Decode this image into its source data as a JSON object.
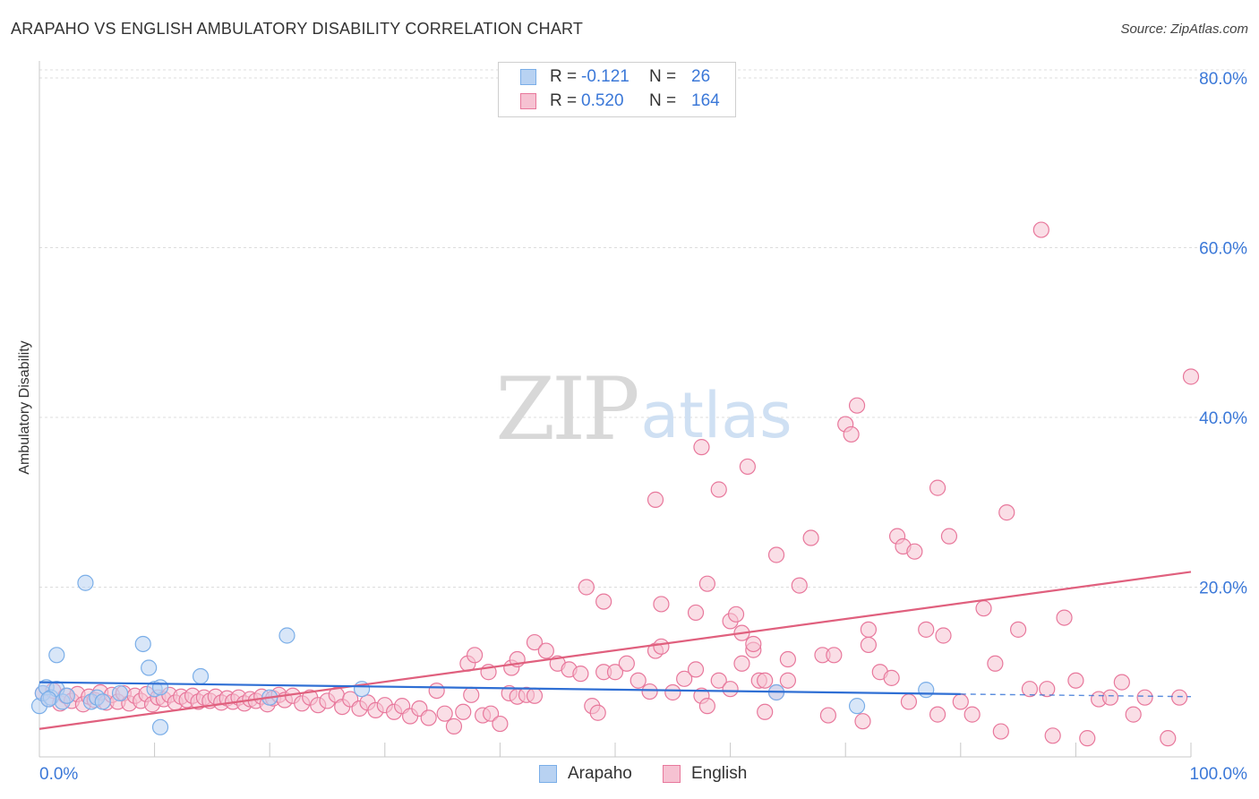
{
  "chart_data": {
    "type": "scatter",
    "title": "ARAPAHO VS ENGLISH AMBULATORY DISABILITY CORRELATION CHART",
    "source": "Source: ZipAtlas.com",
    "ylabel": "Ambulatory Disability",
    "xlabel": "",
    "xlim": [
      0,
      100
    ],
    "ylim": [
      0,
      82
    ],
    "x_tick_labels": [
      "0.0%",
      "100.0%"
    ],
    "y_ticks": [
      20,
      40,
      60,
      80
    ],
    "y_tick_labels": [
      "20.0%",
      "40.0%",
      "60.0%",
      "80.0%"
    ],
    "grid": true,
    "watermark": {
      "zip": "ZIP",
      "atlas": "atlas"
    },
    "legend_stats": {
      "r_label": "R = ",
      "n_label": "N = ",
      "rows": [
        {
          "series": "Arapaho",
          "r": "-0.121",
          "n": "26"
        },
        {
          "series": "English",
          "r": "0.520",
          "n": "164"
        }
      ]
    },
    "series": [
      {
        "name": "Arapaho",
        "color": "#7aaee8",
        "fill": "#b8d2f2",
        "trend": {
          "x0": 0,
          "y0": 8.8,
          "x1": 80,
          "y1": 7.4,
          "dashed_to": 100,
          "dashed_y": 7.1,
          "color": "#2f6fd4"
        },
        "points": [
          [
            0,
            6.0
          ],
          [
            0.3,
            7.5
          ],
          [
            0.6,
            8.2
          ],
          [
            1.0,
            7.0
          ],
          [
            1.5,
            8.0
          ],
          [
            2.0,
            6.5
          ],
          [
            2.4,
            7.2
          ],
          [
            1.5,
            12.0
          ],
          [
            4,
            20.5
          ],
          [
            4.5,
            6.5
          ],
          [
            5,
            7.0
          ],
          [
            5.5,
            6.5
          ],
          [
            7,
            7.5
          ],
          [
            9,
            13.3
          ],
          [
            9.5,
            10.5
          ],
          [
            10,
            8.0
          ],
          [
            10.5,
            8.2
          ],
          [
            10.5,
            3.5
          ],
          [
            14,
            9.5
          ],
          [
            20,
            7.0
          ],
          [
            21.5,
            14.3
          ],
          [
            28,
            8.0
          ],
          [
            64,
            7.6
          ],
          [
            71,
            6.0
          ],
          [
            77,
            7.9
          ],
          [
            0.8,
            6.8
          ]
        ]
      },
      {
        "name": "English",
        "color": "#e8789c",
        "fill": "#f6c2d2",
        "trend": {
          "x0": 0,
          "y0": 3.3,
          "x1": 100,
          "y1": 21.8,
          "color": "#e0607e"
        },
        "points": [
          [
            0.3,
            7.5
          ],
          [
            0.8,
            6.8
          ],
          [
            1.2,
            7.8
          ],
          [
            1.8,
            6.3
          ],
          [
            2.3,
            7.2
          ],
          [
            2.8,
            6.6
          ],
          [
            3.3,
            7.4
          ],
          [
            3.8,
            6.2
          ],
          [
            4.3,
            7.1
          ],
          [
            4.8,
            6.7
          ],
          [
            5.3,
            7.6
          ],
          [
            5.8,
            6.4
          ],
          [
            6.3,
            7.3
          ],
          [
            6.8,
            6.5
          ],
          [
            7.3,
            7.5
          ],
          [
            7.8,
            6.3
          ],
          [
            8.3,
            7.2
          ],
          [
            8.8,
            6.6
          ],
          [
            9.3,
            7.4
          ],
          [
            9.8,
            6.2
          ],
          [
            10.3,
            7.0
          ],
          [
            10.8,
            6.8
          ],
          [
            11.3,
            7.3
          ],
          [
            11.8,
            6.4
          ],
          [
            12.3,
            7.1
          ],
          [
            12.8,
            6.7
          ],
          [
            13.3,
            7.2
          ],
          [
            13.8,
            6.5
          ],
          [
            14.3,
            7.0
          ],
          [
            14.8,
            6.6
          ],
          [
            15.3,
            7.1
          ],
          [
            15.8,
            6.4
          ],
          [
            16.3,
            6.9
          ],
          [
            16.8,
            6.5
          ],
          [
            17.3,
            7.0
          ],
          [
            17.8,
            6.3
          ],
          [
            18.3,
            6.8
          ],
          [
            18.8,
            6.6
          ],
          [
            19.3,
            7.1
          ],
          [
            19.8,
            6.2
          ],
          [
            20.3,
            6.9
          ],
          [
            20.8,
            7.3
          ],
          [
            21.3,
            6.7
          ],
          [
            22.0,
            7.2
          ],
          [
            22.8,
            6.3
          ],
          [
            23.5,
            7.0
          ],
          [
            24.2,
            6.1
          ],
          [
            25.0,
            6.6
          ],
          [
            25.8,
            7.3
          ],
          [
            26.3,
            5.9
          ],
          [
            27.0,
            6.8
          ],
          [
            27.8,
            5.7
          ],
          [
            28.5,
            6.4
          ],
          [
            29.2,
            5.5
          ],
          [
            30.0,
            6.1
          ],
          [
            30.8,
            5.3
          ],
          [
            31.5,
            6.0
          ],
          [
            32.2,
            4.8
          ],
          [
            33.0,
            5.7
          ],
          [
            33.8,
            4.6
          ],
          [
            34.5,
            7.8
          ],
          [
            35.2,
            5.1
          ],
          [
            36.0,
            3.6
          ],
          [
            36.8,
            5.3
          ],
          [
            37.5,
            7.3
          ],
          [
            38.5,
            4.9
          ],
          [
            39.2,
            5.1
          ],
          [
            40.0,
            3.9
          ],
          [
            40.8,
            7.5
          ],
          [
            41.5,
            7.1
          ],
          [
            42.3,
            7.3
          ],
          [
            43.0,
            7.2
          ],
          [
            37.2,
            11.0
          ],
          [
            37.8,
            12.0
          ],
          [
            39.0,
            10.0
          ],
          [
            41.0,
            10.5
          ],
          [
            41.5,
            11.5
          ],
          [
            43.0,
            13.5
          ],
          [
            44.0,
            12.5
          ],
          [
            45.0,
            11.0
          ],
          [
            46.0,
            10.3
          ],
          [
            47.0,
            9.8
          ],
          [
            48.0,
            6.0
          ],
          [
            48.5,
            5.2
          ],
          [
            49.0,
            10.0
          ],
          [
            50.0,
            10.0
          ],
          [
            51.0,
            11.0
          ],
          [
            52.0,
            9.0
          ],
          [
            53.0,
            7.7
          ],
          [
            53.5,
            12.5
          ],
          [
            54.0,
            13.0
          ],
          [
            55.0,
            7.6
          ],
          [
            56.0,
            9.2
          ],
          [
            57.0,
            10.3
          ],
          [
            57.5,
            7.2
          ],
          [
            58.0,
            6.0
          ],
          [
            59.0,
            9.0
          ],
          [
            60.0,
            8.0
          ],
          [
            61.0,
            11.0
          ],
          [
            62.0,
            12.6
          ],
          [
            62.5,
            9.0
          ],
          [
            63.0,
            5.3
          ],
          [
            64.0,
            7.6
          ],
          [
            65.0,
            9.0
          ],
          [
            47.5,
            20.0
          ],
          [
            49.0,
            18.3
          ],
          [
            53.5,
            30.3
          ],
          [
            54.0,
            18.0
          ],
          [
            57.0,
            17.0
          ],
          [
            57.5,
            36.5
          ],
          [
            58.0,
            20.4
          ],
          [
            59.0,
            31.5
          ],
          [
            60.0,
            16.0
          ],
          [
            60.5,
            16.8
          ],
          [
            61.0,
            14.6
          ],
          [
            61.5,
            34.2
          ],
          [
            62.0,
            13.3
          ],
          [
            63.0,
            9.0
          ],
          [
            64.0,
            23.8
          ],
          [
            65.0,
            11.5
          ],
          [
            66.0,
            20.2
          ],
          [
            67.0,
            25.8
          ],
          [
            68.0,
            12.0
          ],
          [
            69.0,
            12.0
          ],
          [
            70.0,
            39.2
          ],
          [
            70.5,
            38.0
          ],
          [
            71.0,
            41.4
          ],
          [
            72.0,
            15.0
          ],
          [
            72.0,
            13.2
          ],
          [
            73.0,
            10.0
          ],
          [
            74.0,
            9.3
          ],
          [
            74.5,
            26.0
          ],
          [
            75.0,
            24.8
          ],
          [
            76.0,
            24.2
          ],
          [
            77.0,
            15.0
          ],
          [
            78.0,
            31.7
          ],
          [
            78.5,
            14.3
          ],
          [
            79.0,
            26.0
          ],
          [
            80.0,
            6.5
          ],
          [
            81.0,
            5.0
          ],
          [
            82.0,
            17.5
          ],
          [
            83.0,
            11.0
          ],
          [
            84.0,
            28.8
          ],
          [
            85.0,
            15.0
          ],
          [
            86.0,
            8.0
          ],
          [
            87.0,
            62.1
          ],
          [
            88.0,
            2.5
          ],
          [
            89.0,
            16.4
          ],
          [
            90.0,
            9.0
          ],
          [
            91.0,
            2.2
          ],
          [
            92.0,
            6.8
          ],
          [
            93.0,
            7.0
          ],
          [
            94.0,
            8.8
          ],
          [
            95.0,
            5.0
          ],
          [
            96.0,
            7.0
          ],
          [
            98.0,
            2.2
          ],
          [
            99.0,
            7.0
          ],
          [
            100.0,
            44.8
          ],
          [
            68.5,
            4.9
          ],
          [
            71.5,
            4.2
          ],
          [
            75.5,
            6.5
          ],
          [
            78.0,
            5.0
          ],
          [
            83.5,
            3.0
          ],
          [
            87.5,
            8.0
          ]
        ]
      }
    ]
  }
}
